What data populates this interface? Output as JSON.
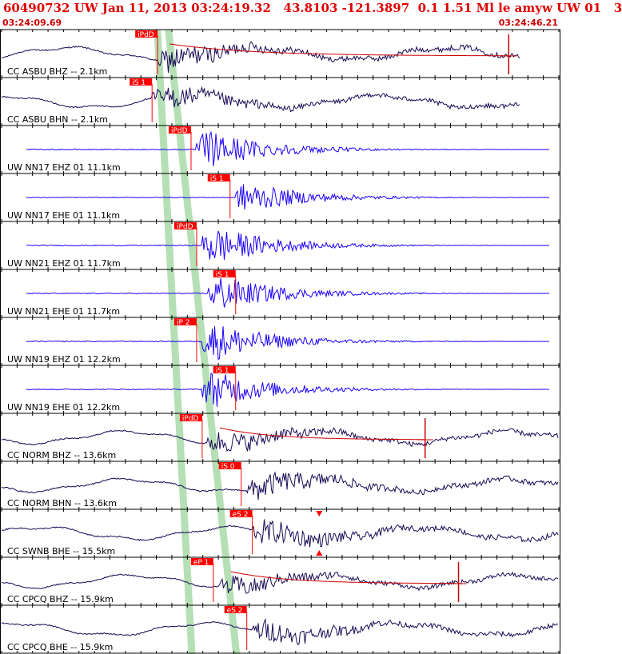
{
  "header": {
    "title": "60490732 UW Jan 11, 2013 03:24:19.32   43.8103 -121.3897  0.1 1.51 Ml le amyw UW 01   3",
    "start_time": "03:24:09.69",
    "end_time": "03:24:46.21"
  },
  "colors": {
    "title": "#e00000",
    "short_period_trace": "#1a00ff",
    "broadband_trace": "#1a0a55",
    "pick_box": "#ff0000",
    "phase_window": "#a8dba8",
    "panel_border": "#000000"
  },
  "chart_data": {
    "type": "seismogram",
    "time_range": [
      "03:24:09.69",
      "03:24:46.21"
    ],
    "traces": [
      {
        "label": "CC ASBU BHZ -- 2.1km",
        "color": "#1a0a55",
        "pick": "iPdD",
        "pick_time": 0.28,
        "amplitude": 0.55,
        "onset": 0.28,
        "style": "broadband",
        "coda_curve": true,
        "end_mark": 0.91
      },
      {
        "label": "CC ASBU BHN -- 2.1km",
        "color": "#1a0a55",
        "pick": "iS 1",
        "pick_time": 0.27,
        "amplitude": 0.5,
        "onset": 0.27,
        "style": "broadband"
      },
      {
        "label": "UW NN17 EHZ 01 11.1km",
        "color": "#1a00ff",
        "pick": "iPdD",
        "pick_time": 0.34,
        "amplitude": 0.9,
        "onset": 0.35,
        "style": "short"
      },
      {
        "label": "UW NN17 EHE 01 11.1km",
        "color": "#1a00ff",
        "pick": "iS 1",
        "pick_time": 0.41,
        "amplitude": 0.7,
        "onset": 0.42,
        "style": "short"
      },
      {
        "label": "UW NN21 EHZ 01 11.7km",
        "color": "#1a00ff",
        "pick": "iPdD",
        "pick_time": 0.35,
        "amplitude": 0.9,
        "onset": 0.36,
        "style": "short"
      },
      {
        "label": "UW NN21 EHE 01 11.7km",
        "color": "#1a00ff",
        "pick": "iS 1",
        "pick_time": 0.42,
        "amplitude": 0.85,
        "onset": 0.37,
        "style": "short"
      },
      {
        "label": "UW NN19 EHZ 01 12.2km",
        "color": "#1a00ff",
        "pick": "iP 2",
        "pick_time": 0.35,
        "amplitude": 0.9,
        "onset": 0.36,
        "style": "short"
      },
      {
        "label": "UW NN19 EHE 01 12.2km",
        "color": "#1a00ff",
        "pick": "iS 1",
        "pick_time": 0.42,
        "amplitude": 0.85,
        "onset": 0.36,
        "style": "short"
      },
      {
        "label": "CC NORM BHZ -- 13.6km",
        "color": "#1a0a55",
        "pick": "iPdD",
        "pick_time": 0.36,
        "amplitude": 0.5,
        "onset": 0.37,
        "style": "broadband",
        "coda_curve": true,
        "end_mark": 0.76
      },
      {
        "label": "CC NORM BHN -- 13.6km",
        "color": "#1a0a55",
        "pick": "iS 0",
        "pick_time": 0.43,
        "amplitude": 0.55,
        "onset": 0.44,
        "style": "broadband"
      },
      {
        "label": "CC SWNB BHE -- 15.5km",
        "color": "#1a0a55",
        "pick": "eS 2",
        "pick_time": 0.45,
        "amplitude": 0.55,
        "onset": 0.45,
        "style": "broadband",
        "triangle": 0.57
      },
      {
        "label": "CC CPCQ BHZ -- 15.9km",
        "color": "#1a0a55",
        "pick": "eP 1",
        "pick_time": 0.38,
        "amplitude": 0.45,
        "onset": 0.39,
        "style": "broadband",
        "coda_curve": true,
        "end_mark": 0.82
      },
      {
        "label": "CC CPCQ BHE -- 15.9km",
        "color": "#1a0a55",
        "pick": "eS 2",
        "pick_time": 0.44,
        "amplitude": 0.5,
        "onset": 0.45,
        "style": "broadband"
      }
    ]
  }
}
